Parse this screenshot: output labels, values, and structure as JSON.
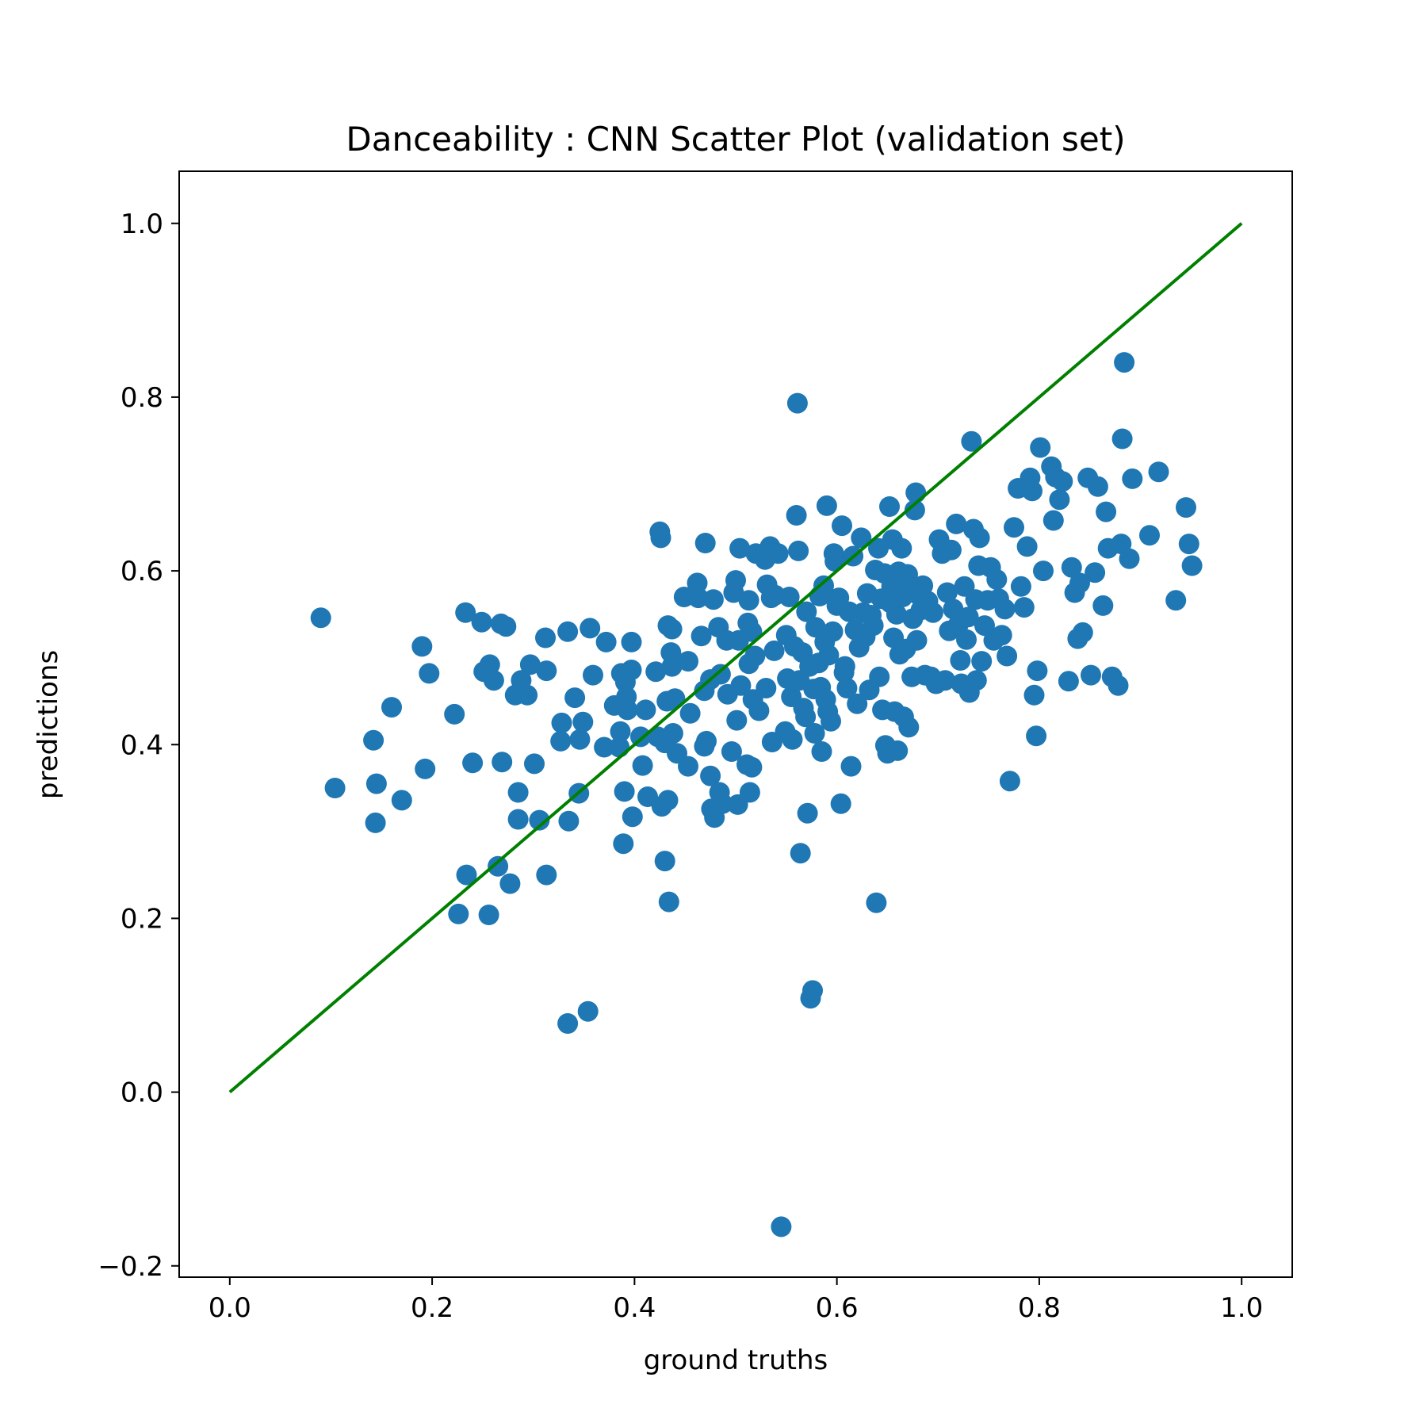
{
  "chart_data": {
    "type": "scatter",
    "title": "Danceability : CNN Scatter Plot (validation set)",
    "xlabel": "ground truths",
    "ylabel": "predictions",
    "xlim": [
      -0.05,
      1.05
    ],
    "ylim": [
      -0.213,
      1.06
    ],
    "xticks": [
      0.0,
      0.2,
      0.4,
      0.6,
      0.8,
      1.0
    ],
    "xtick_labels": [
      "0.0",
      "0.2",
      "0.4",
      "0.6",
      "0.8",
      "1.0"
    ],
    "yticks": [
      -0.2,
      0.0,
      0.2,
      0.4,
      0.6,
      0.8,
      1.0
    ],
    "ytick_labels": [
      "−0.2",
      "0.0",
      "0.2",
      "0.4",
      "0.6",
      "0.8",
      "1.0"
    ],
    "grid": false,
    "legend": "none",
    "colors": {
      "points": "#1f77b4",
      "identity_line": "#008000"
    },
    "identity_line": {
      "x": [
        0.0,
        1.0
      ],
      "y": [
        0.0,
        1.0
      ]
    },
    "series": [
      {
        "points": [
          [
            0.09,
            0.546
          ],
          [
            0.104,
            0.35
          ],
          [
            0.142,
            0.405
          ],
          [
            0.145,
            0.355
          ],
          [
            0.144,
            0.31
          ],
          [
            0.16,
            0.443
          ],
          [
            0.17,
            0.336
          ],
          [
            0.19,
            0.513
          ],
          [
            0.193,
            0.372
          ],
          [
            0.197,
            0.482
          ],
          [
            0.222,
            0.435
          ],
          [
            0.226,
            0.205
          ],
          [
            0.233,
            0.552
          ],
          [
            0.234,
            0.25
          ],
          [
            0.24,
            0.379
          ],
          [
            0.249,
            0.541
          ],
          [
            0.251,
            0.484
          ],
          [
            0.257,
            0.492
          ],
          [
            0.256,
            0.204
          ],
          [
            0.261,
            0.474
          ],
          [
            0.265,
            0.26
          ],
          [
            0.268,
            0.539
          ],
          [
            0.269,
            0.38
          ],
          [
            0.273,
            0.536
          ],
          [
            0.277,
            0.24
          ],
          [
            0.282,
            0.457
          ],
          [
            0.285,
            0.345
          ],
          [
            0.285,
            0.314
          ],
          [
            0.288,
            0.474
          ],
          [
            0.294,
            0.457
          ],
          [
            0.297,
            0.492
          ],
          [
            0.301,
            0.378
          ],
          [
            0.306,
            0.313
          ],
          [
            0.312,
            0.523
          ],
          [
            0.313,
            0.485
          ],
          [
            0.313,
            0.25
          ],
          [
            0.327,
            0.404
          ],
          [
            0.328,
            0.425
          ],
          [
            0.334,
            0.53
          ],
          [
            0.335,
            0.312
          ],
          [
            0.334,
            0.079
          ],
          [
            0.341,
            0.454
          ],
          [
            0.345,
            0.344
          ],
          [
            0.346,
            0.406
          ],
          [
            0.349,
            0.426
          ],
          [
            0.354,
            0.093
          ],
          [
            0.356,
            0.534
          ],
          [
            0.359,
            0.48
          ],
          [
            0.37,
            0.397
          ],
          [
            0.372,
            0.518
          ],
          [
            0.38,
            0.445
          ],
          [
            0.385,
            0.397
          ],
          [
            0.386,
            0.415
          ],
          [
            0.387,
            0.482
          ],
          [
            0.389,
            0.286
          ],
          [
            0.39,
            0.346
          ],
          [
            0.391,
            0.472
          ],
          [
            0.392,
            0.455
          ],
          [
            0.393,
            0.44
          ],
          [
            0.397,
            0.486
          ],
          [
            0.397,
            0.518
          ],
          [
            0.398,
            0.317
          ],
          [
            0.406,
            0.409
          ],
          [
            0.408,
            0.376
          ],
          [
            0.411,
            0.44
          ],
          [
            0.413,
            0.34
          ],
          [
            0.421,
            0.484
          ],
          [
            0.423,
            0.409
          ],
          [
            0.425,
            0.645
          ],
          [
            0.426,
            0.638
          ],
          [
            0.427,
            0.329
          ],
          [
            0.43,
            0.266
          ],
          [
            0.43,
            0.402
          ],
          [
            0.432,
            0.45
          ],
          [
            0.433,
            0.336
          ],
          [
            0.433,
            0.537
          ],
          [
            0.434,
            0.219
          ],
          [
            0.436,
            0.506
          ],
          [
            0.437,
            0.533
          ],
          [
            0.437,
            0.49
          ],
          [
            0.438,
            0.413
          ],
          [
            0.44,
            0.453
          ],
          [
            0.442,
            0.39
          ],
          [
            0.449,
            0.57
          ],
          [
            0.453,
            0.496
          ],
          [
            0.453,
            0.375
          ],
          [
            0.455,
            0.436
          ],
          [
            0.462,
            0.586
          ],
          [
            0.463,
            0.569
          ],
          [
            0.466,
            0.525
          ],
          [
            0.469,
            0.398
          ],
          [
            0.469,
            0.462
          ],
          [
            0.47,
            0.632
          ],
          [
            0.471,
            0.404
          ],
          [
            0.475,
            0.475
          ],
          [
            0.475,
            0.364
          ],
          [
            0.476,
            0.326
          ],
          [
            0.478,
            0.567
          ],
          [
            0.479,
            0.316
          ],
          [
            0.483,
            0.535
          ],
          [
            0.484,
            0.345
          ],
          [
            0.485,
            0.481
          ],
          [
            0.487,
            0.332
          ],
          [
            0.491,
            0.52
          ],
          [
            0.492,
            0.458
          ],
          [
            0.496,
            0.392
          ],
          [
            0.498,
            0.575
          ],
          [
            0.5,
            0.589
          ],
          [
            0.501,
            0.428
          ],
          [
            0.502,
            0.331
          ],
          [
            0.503,
            0.52
          ],
          [
            0.504,
            0.626
          ],
          [
            0.505,
            0.468
          ],
          [
            0.511,
            0.377
          ],
          [
            0.512,
            0.54
          ],
          [
            0.513,
            0.566
          ],
          [
            0.513,
            0.493
          ],
          [
            0.514,
            0.345
          ],
          [
            0.516,
            0.374
          ],
          [
            0.516,
            0.53
          ],
          [
            0.517,
            0.452
          ],
          [
            0.519,
            0.502
          ],
          [
            0.52,
            0.62
          ],
          [
            0.523,
            0.439
          ],
          [
            0.529,
            0.613
          ],
          [
            0.53,
            0.465
          ],
          [
            0.531,
            0.584
          ],
          [
            0.534,
            0.628
          ],
          [
            0.535,
            0.569
          ],
          [
            0.536,
            0.403
          ],
          [
            0.538,
            0.508
          ],
          [
            0.539,
            0.572
          ],
          [
            0.542,
            0.62
          ],
          [
            0.545,
            -0.155
          ],
          [
            0.549,
            0.415
          ],
          [
            0.55,
            0.526
          ],
          [
            0.551,
            0.476
          ],
          [
            0.553,
            0.57
          ],
          [
            0.555,
            0.455
          ],
          [
            0.556,
            0.406
          ],
          [
            0.558,
            0.513
          ],
          [
            0.56,
            0.664
          ],
          [
            0.561,
            0.793
          ],
          [
            0.562,
            0.623
          ],
          [
            0.563,
            0.474
          ],
          [
            0.564,
            0.275
          ],
          [
            0.566,
            0.506
          ],
          [
            0.567,
            0.442
          ],
          [
            0.569,
            0.432
          ],
          [
            0.57,
            0.553
          ],
          [
            0.571,
            0.321
          ],
          [
            0.573,
            0.49
          ],
          [
            0.574,
            0.108
          ],
          [
            0.576,
            0.117
          ],
          [
            0.577,
            0.464
          ],
          [
            0.578,
            0.413
          ],
          [
            0.579,
            0.535
          ],
          [
            0.582,
            0.494
          ],
          [
            0.583,
            0.571
          ],
          [
            0.584,
            0.466
          ],
          [
            0.585,
            0.392
          ],
          [
            0.587,
            0.583
          ],
          [
            0.588,
            0.518
          ],
          [
            0.589,
            0.452
          ],
          [
            0.59,
            0.675
          ],
          [
            0.591,
            0.438
          ],
          [
            0.592,
            0.503
          ],
          [
            0.594,
            0.427
          ],
          [
            0.596,
            0.53
          ],
          [
            0.597,
            0.62
          ],
          [
            0.598,
            0.611
          ],
          [
            0.6,
            0.56
          ],
          [
            0.602,
            0.569
          ],
          [
            0.604,
            0.332
          ],
          [
            0.605,
            0.652
          ],
          [
            0.607,
            0.483
          ],
          [
            0.608,
            0.49
          ],
          [
            0.61,
            0.465
          ],
          [
            0.612,
            0.553
          ],
          [
            0.614,
            0.375
          ],
          [
            0.616,
            0.617
          ],
          [
            0.618,
            0.532
          ],
          [
            0.62,
            0.447
          ],
          [
            0.622,
            0.512
          ],
          [
            0.624,
            0.638
          ],
          [
            0.626,
            0.552
          ],
          [
            0.628,
            0.524
          ],
          [
            0.63,
            0.574
          ],
          [
            0.632,
            0.463
          ],
          [
            0.634,
            0.549
          ],
          [
            0.636,
            0.537
          ],
          [
            0.638,
            0.601
          ],
          [
            0.639,
            0.218
          ],
          [
            0.641,
            0.626
          ],
          [
            0.642,
            0.478
          ],
          [
            0.644,
            0.568
          ],
          [
            0.645,
            0.44
          ],
          [
            0.647,
            0.597
          ],
          [
            0.648,
            0.399
          ],
          [
            0.65,
            0.39
          ],
          [
            0.652,
            0.674
          ],
          [
            0.653,
            0.563
          ],
          [
            0.654,
            0.582
          ],
          [
            0.655,
            0.636
          ],
          [
            0.656,
            0.523
          ],
          [
            0.657,
            0.438
          ],
          [
            0.659,
            0.55
          ],
          [
            0.66,
            0.393
          ],
          [
            0.661,
            0.599
          ],
          [
            0.662,
            0.504
          ],
          [
            0.664,
            0.626
          ],
          [
            0.665,
            0.57
          ],
          [
            0.666,
            0.432
          ],
          [
            0.668,
            0.51
          ],
          [
            0.67,
            0.596
          ],
          [
            0.671,
            0.42
          ],
          [
            0.672,
            0.581
          ],
          [
            0.674,
            0.478
          ],
          [
            0.675,
            0.545
          ],
          [
            0.677,
            0.67
          ],
          [
            0.678,
            0.69
          ],
          [
            0.679,
            0.52
          ],
          [
            0.681,
            0.572
          ],
          [
            0.683,
            0.555
          ],
          [
            0.685,
            0.583
          ],
          [
            0.687,
            0.48
          ],
          [
            0.69,
            0.565
          ],
          [
            0.693,
            0.478
          ],
          [
            0.695,
            0.552
          ],
          [
            0.698,
            0.47
          ],
          [
            0.701,
            0.636
          ],
          [
            0.704,
            0.62
          ],
          [
            0.707,
            0.474
          ],
          [
            0.709,
            0.575
          ],
          [
            0.711,
            0.531
          ],
          [
            0.713,
            0.624
          ],
          [
            0.715,
            0.556
          ],
          [
            0.718,
            0.654
          ],
          [
            0.72,
            0.538
          ],
          [
            0.722,
            0.497
          ],
          [
            0.723,
            0.47
          ],
          [
            0.726,
            0.582
          ],
          [
            0.728,
            0.521
          ],
          [
            0.73,
            0.547
          ],
          [
            0.731,
            0.46
          ],
          [
            0.733,
            0.749
          ],
          [
            0.735,
            0.648
          ],
          [
            0.737,
            0.567
          ],
          [
            0.738,
            0.474
          ],
          [
            0.74,
            0.606
          ],
          [
            0.741,
            0.638
          ],
          [
            0.743,
            0.496
          ],
          [
            0.746,
            0.537
          ],
          [
            0.749,
            0.566
          ],
          [
            0.752,
            0.604
          ],
          [
            0.755,
            0.52
          ],
          [
            0.758,
            0.59
          ],
          [
            0.76,
            0.568
          ],
          [
            0.763,
            0.526
          ],
          [
            0.766,
            0.556
          ],
          [
            0.768,
            0.502
          ],
          [
            0.771,
            0.358
          ],
          [
            0.775,
            0.65
          ],
          [
            0.779,
            0.695
          ],
          [
            0.782,
            0.582
          ],
          [
            0.785,
            0.558
          ],
          [
            0.788,
            0.628
          ],
          [
            0.791,
            0.707
          ],
          [
            0.793,
            0.692
          ],
          [
            0.795,
            0.457
          ],
          [
            0.797,
            0.41
          ],
          [
            0.798,
            0.485
          ],
          [
            0.801,
            0.742
          ],
          [
            0.804,
            0.6
          ],
          [
            0.812,
            0.72
          ],
          [
            0.814,
            0.658
          ],
          [
            0.816,
            0.708
          ],
          [
            0.82,
            0.682
          ],
          [
            0.823,
            0.703
          ],
          [
            0.829,
            0.473
          ],
          [
            0.832,
            0.604
          ],
          [
            0.835,
            0.575
          ],
          [
            0.838,
            0.522
          ],
          [
            0.84,
            0.586
          ],
          [
            0.843,
            0.529
          ],
          [
            0.848,
            0.707
          ],
          [
            0.851,
            0.48
          ],
          [
            0.855,
            0.598
          ],
          [
            0.858,
            0.697
          ],
          [
            0.863,
            0.56
          ],
          [
            0.866,
            0.668
          ],
          [
            0.868,
            0.626
          ],
          [
            0.872,
            0.478
          ],
          [
            0.878,
            0.468
          ],
          [
            0.881,
            0.631
          ],
          [
            0.882,
            0.752
          ],
          [
            0.884,
            0.84
          ],
          [
            0.889,
            0.614
          ],
          [
            0.892,
            0.706
          ],
          [
            0.909,
            0.641
          ],
          [
            0.918,
            0.714
          ],
          [
            0.935,
            0.566
          ],
          [
            0.945,
            0.673
          ],
          [
            0.948,
            0.631
          ],
          [
            0.951,
            0.606
          ]
        ]
      }
    ]
  }
}
